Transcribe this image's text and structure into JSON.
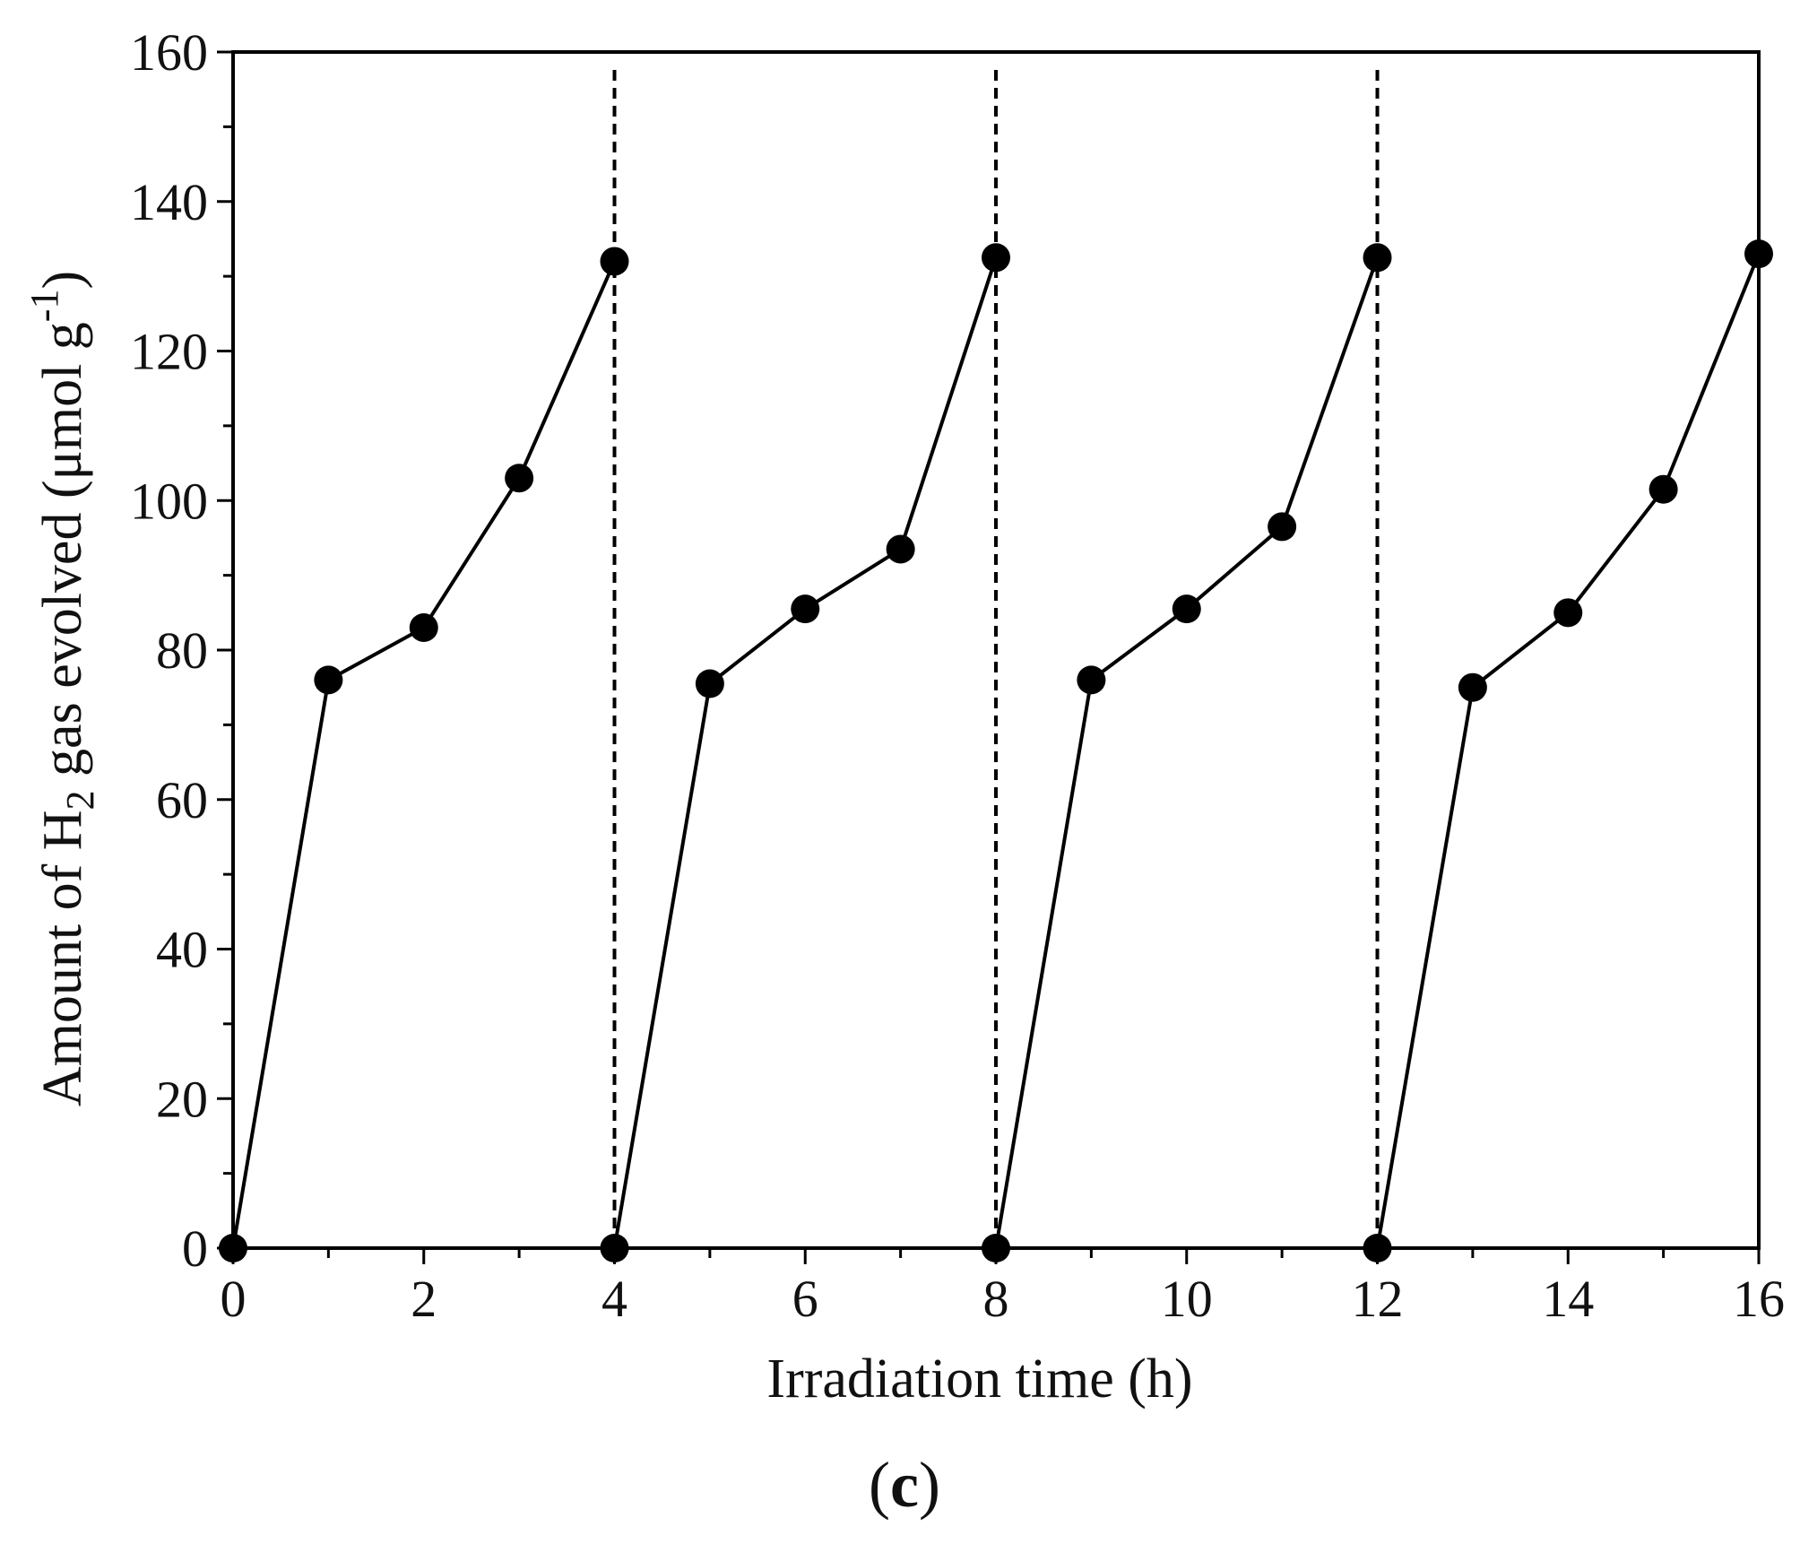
{
  "chart_data": {
    "type": "line",
    "xlabel": "Irradiation time (h)",
    "ylabel": {
      "prefix": "Amount of H",
      "subscript": "2",
      "middle": " gas evolved (μmol g",
      "superscript": "-1",
      "suffix": ")"
    },
    "xlim": [
      0,
      16
    ],
    "ylim": [
      0,
      160
    ],
    "xticks": [
      0,
      2,
      4,
      6,
      8,
      10,
      12,
      14,
      16
    ],
    "yticks": [
      0,
      20,
      40,
      60,
      80,
      100,
      120,
      140,
      160
    ],
    "grid": false,
    "legend": "none",
    "marker": "filled-circle",
    "line_color": "#000000",
    "cycle_separators": [
      4,
      8,
      12
    ],
    "series": [
      {
        "x": [
          0,
          1,
          2,
          3,
          4
        ],
        "y": [
          0,
          76,
          83,
          103,
          132
        ]
      },
      {
        "x": [
          4,
          5,
          6,
          7,
          8
        ],
        "y": [
          0,
          75.5,
          85.5,
          93.5,
          132.5
        ]
      },
      {
        "x": [
          8,
          9,
          10,
          11,
          12
        ],
        "y": [
          0,
          76,
          85.5,
          96.5,
          132.5
        ]
      },
      {
        "x": [
          12,
          13,
          14,
          15,
          16
        ],
        "y": [
          0,
          75,
          85,
          101.5,
          133
        ]
      }
    ]
  },
  "panel_label": {
    "open": "(",
    "letter": "c",
    "close": ")"
  }
}
